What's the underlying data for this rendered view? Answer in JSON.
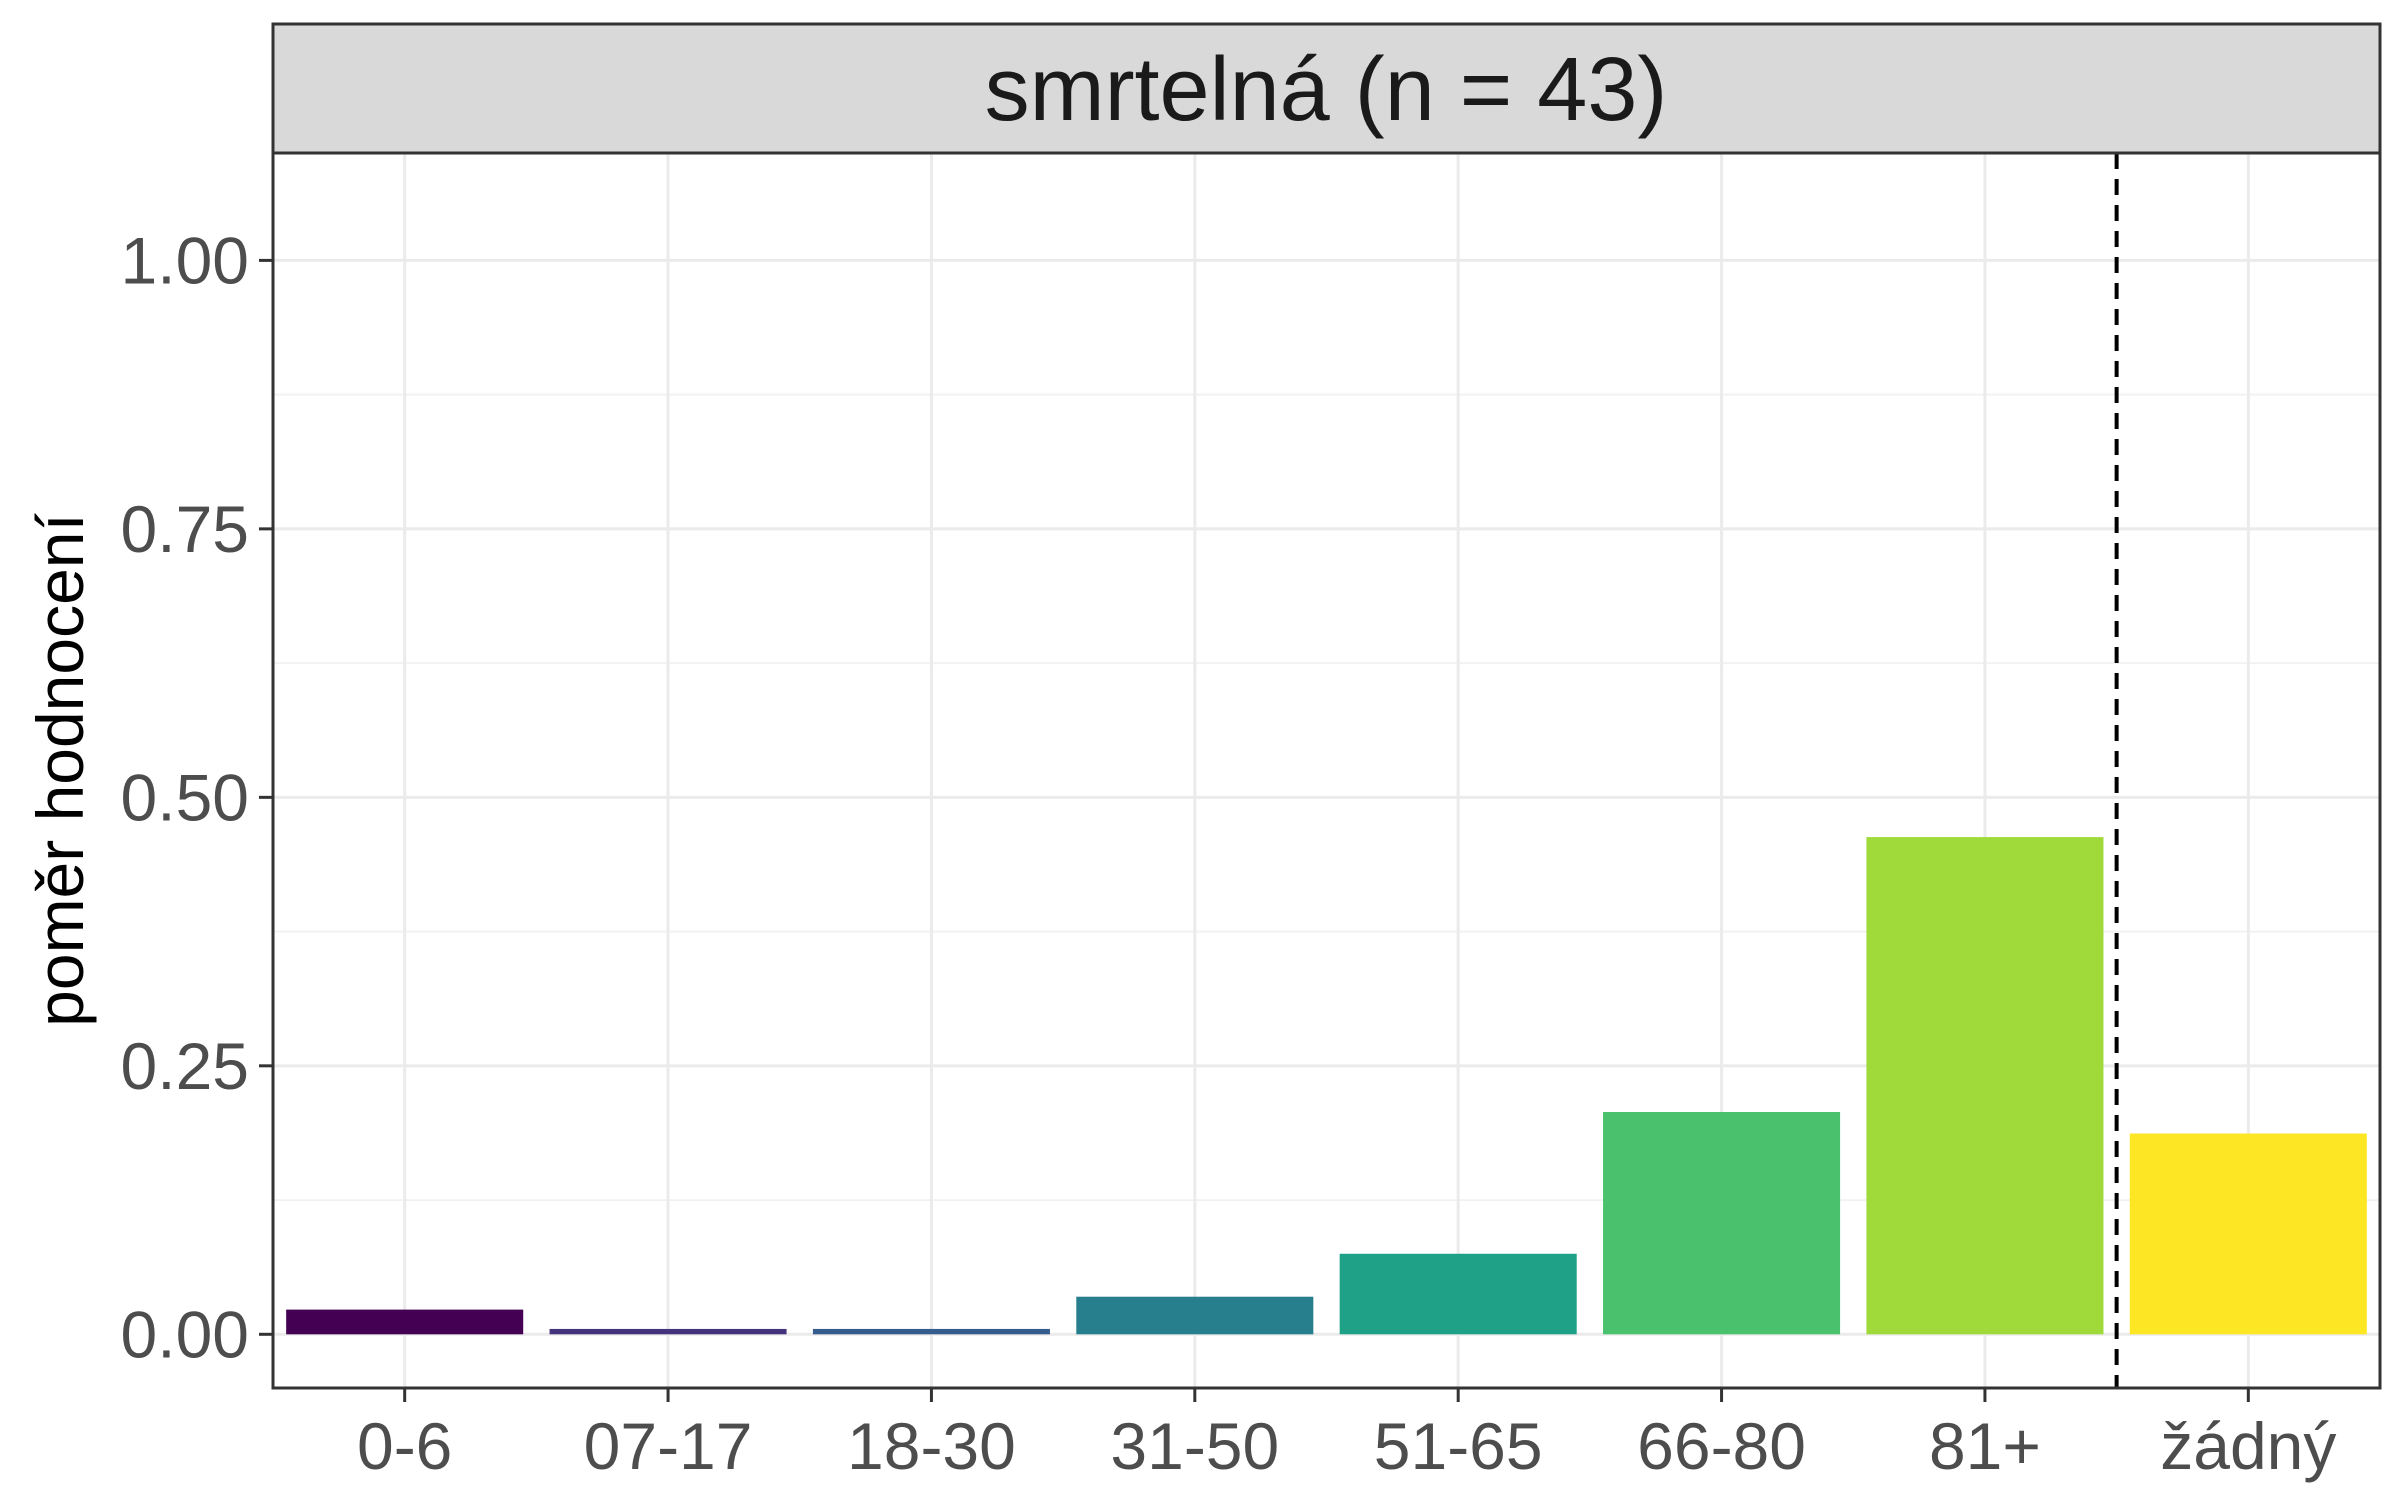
{
  "chart_data": {
    "type": "bar",
    "title": "smrtelná (n = 43)",
    "xlabel": "",
    "ylabel": "poměr hodnocení",
    "categories": [
      "0-6",
      "07-17",
      "18-30",
      "31-50",
      "51-65",
      "66-80",
      "81+",
      "žádný"
    ],
    "values": [
      0.023,
      0.005,
      0.005,
      0.035,
      0.075,
      0.207,
      0.463,
      0.187
    ],
    "colors": [
      "#440154",
      "#46337E",
      "#365C8D",
      "#277F8E",
      "#1FA187",
      "#4AC16D",
      "#9FDA3A",
      "#FDE725"
    ],
    "ylim": [
      -0.05,
      1.1
    ],
    "yticks": [
      0.0,
      0.25,
      0.5,
      0.75,
      1.0
    ],
    "ytick_labels": [
      "0.00",
      "0.25",
      "0.50",
      "0.75",
      "1.00"
    ],
    "separator_after_index": 6,
    "separator_style": "dashed",
    "grid": true,
    "legend": "none"
  }
}
